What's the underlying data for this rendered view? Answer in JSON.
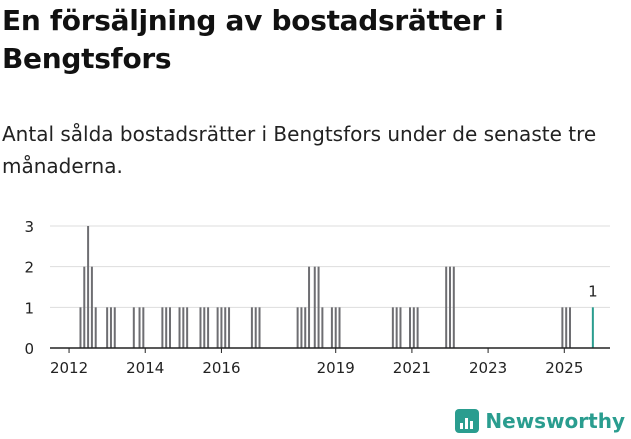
{
  "title": "En försäljning av bostadsrätter i Bengtsfors",
  "subtitle": "Antal sålda bostadsrätter i Bengtsfors under de senaste tre månaderna.",
  "brand": "Newsworthy",
  "colors": {
    "bar": "#6e6e72",
    "highlight": "#2a9d8f",
    "grid": "#dddddd",
    "axis": "#222222"
  },
  "chart_data": {
    "type": "bar",
    "title": "En försäljning av bostadsrätter i Bengtsfors",
    "xlabel": "",
    "ylabel": "",
    "ylim": [
      0,
      3
    ],
    "yticks": [
      "0",
      "1",
      "2",
      "3"
    ],
    "xlim": [
      2011.5,
      2026.2
    ],
    "xticks": [
      "2012",
      "2014",
      "2016",
      "2019",
      "2021",
      "2023",
      "2025"
    ],
    "xtick_values": [
      2012,
      2014,
      2016,
      2019,
      2021,
      2023,
      2025
    ],
    "bar_width": 0.083,
    "highlight_label": "1",
    "bars": [
      {
        "x": 2012.3,
        "value": 1
      },
      {
        "x": 2012.4,
        "value": 2
      },
      {
        "x": 2012.5,
        "value": 3
      },
      {
        "x": 2012.6,
        "value": 2
      },
      {
        "x": 2012.7,
        "value": 1
      },
      {
        "x": 2013.0,
        "value": 1
      },
      {
        "x": 2013.1,
        "value": 1
      },
      {
        "x": 2013.2,
        "value": 1
      },
      {
        "x": 2013.7,
        "value": 1
      },
      {
        "x": 2013.85,
        "value": 1
      },
      {
        "x": 2013.95,
        "value": 1
      },
      {
        "x": 2014.45,
        "value": 1
      },
      {
        "x": 2014.55,
        "value": 1
      },
      {
        "x": 2014.65,
        "value": 1
      },
      {
        "x": 2014.9,
        "value": 1
      },
      {
        "x": 2015.0,
        "value": 1
      },
      {
        "x": 2015.1,
        "value": 1
      },
      {
        "x": 2015.45,
        "value": 1
      },
      {
        "x": 2015.55,
        "value": 1
      },
      {
        "x": 2015.65,
        "value": 1
      },
      {
        "x": 2015.9,
        "value": 1
      },
      {
        "x": 2016.0,
        "value": 1
      },
      {
        "x": 2016.1,
        "value": 1
      },
      {
        "x": 2016.2,
        "value": 1
      },
      {
        "x": 2016.8,
        "value": 1
      },
      {
        "x": 2016.9,
        "value": 1
      },
      {
        "x": 2017.0,
        "value": 1
      },
      {
        "x": 2018.0,
        "value": 1
      },
      {
        "x": 2018.1,
        "value": 1
      },
      {
        "x": 2018.2,
        "value": 1
      },
      {
        "x": 2018.3,
        "value": 2
      },
      {
        "x": 2018.45,
        "value": 2
      },
      {
        "x": 2018.55,
        "value": 2
      },
      {
        "x": 2018.65,
        "value": 1
      },
      {
        "x": 2018.9,
        "value": 1
      },
      {
        "x": 2019.0,
        "value": 1
      },
      {
        "x": 2019.1,
        "value": 1
      },
      {
        "x": 2020.5,
        "value": 1
      },
      {
        "x": 2020.6,
        "value": 1
      },
      {
        "x": 2020.7,
        "value": 1
      },
      {
        "x": 2020.95,
        "value": 1
      },
      {
        "x": 2021.05,
        "value": 1
      },
      {
        "x": 2021.15,
        "value": 1
      },
      {
        "x": 2021.9,
        "value": 2
      },
      {
        "x": 2022.0,
        "value": 2
      },
      {
        "x": 2022.1,
        "value": 2
      },
      {
        "x": 2024.95,
        "value": 1
      },
      {
        "x": 2025.05,
        "value": 1
      },
      {
        "x": 2025.15,
        "value": 1
      },
      {
        "x": 2025.75,
        "value": 1,
        "highlight": true
      }
    ]
  }
}
